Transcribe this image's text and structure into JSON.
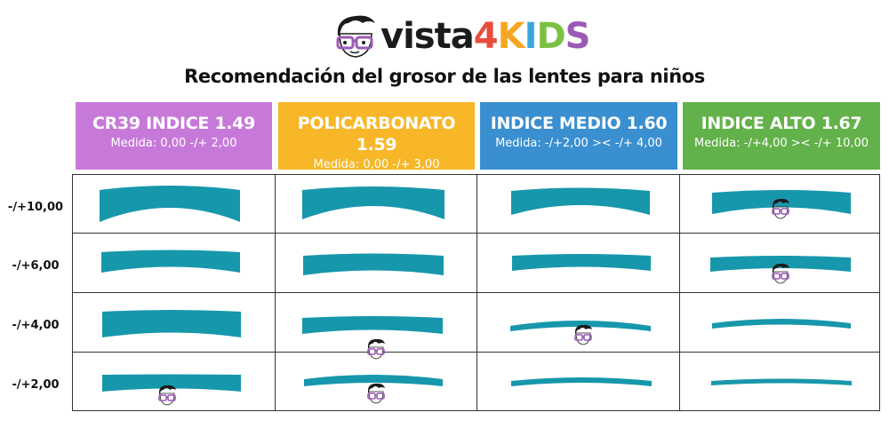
{
  "logo": {
    "word": "vista",
    "suffix": [
      "4",
      "K",
      "I",
      "D",
      "S"
    ],
    "colors": {
      "vista": "#1b1b1b",
      "4": "#e84d3c",
      "K": "#f5a623",
      "I": "#3aa7dc",
      "D": "#7ac143",
      "S": "#9b59b6"
    }
  },
  "title": "Recomendación del grosor de las lentes para niños",
  "columns": [
    {
      "title": "CR39 INDICE 1.49",
      "sub": "Medida: 0,00 -/+ 2,00",
      "color": "#c779d9"
    },
    {
      "title": "POLICARBONATO 1.59",
      "sub": "Medida: 0,00 -/+ 3,00",
      "color": "#f7b728"
    },
    {
      "title": "INDICE MEDIO 1.60",
      "sub": "Medida: -/+2,00 >< -/+ 4,00",
      "color": "#3a8fd0"
    },
    {
      "title": "INDICE ALTO 1.67",
      "sub": "Medida: -/+4,00 >< -/+ 10,00",
      "color": "#62b14a"
    }
  ],
  "rows": [
    "-/+10,00",
    "-/+6,00",
    "-/+4,00",
    "-/+2,00"
  ],
  "lens_color": "#1797ab",
  "recommended_marker": "kid-face-icon",
  "recommended": {
    "-/+10,00": "INDICE ALTO 1.67",
    "-/+6,00": "INDICE ALTO 1.67",
    "-/+4,00": [
      "POLICARBONATO 1.59",
      "INDICE MEDIO 1.60"
    ],
    "-/+2,00": [
      "CR39 INDICE 1.49",
      "POLICARBONATO 1.59"
    ]
  }
}
